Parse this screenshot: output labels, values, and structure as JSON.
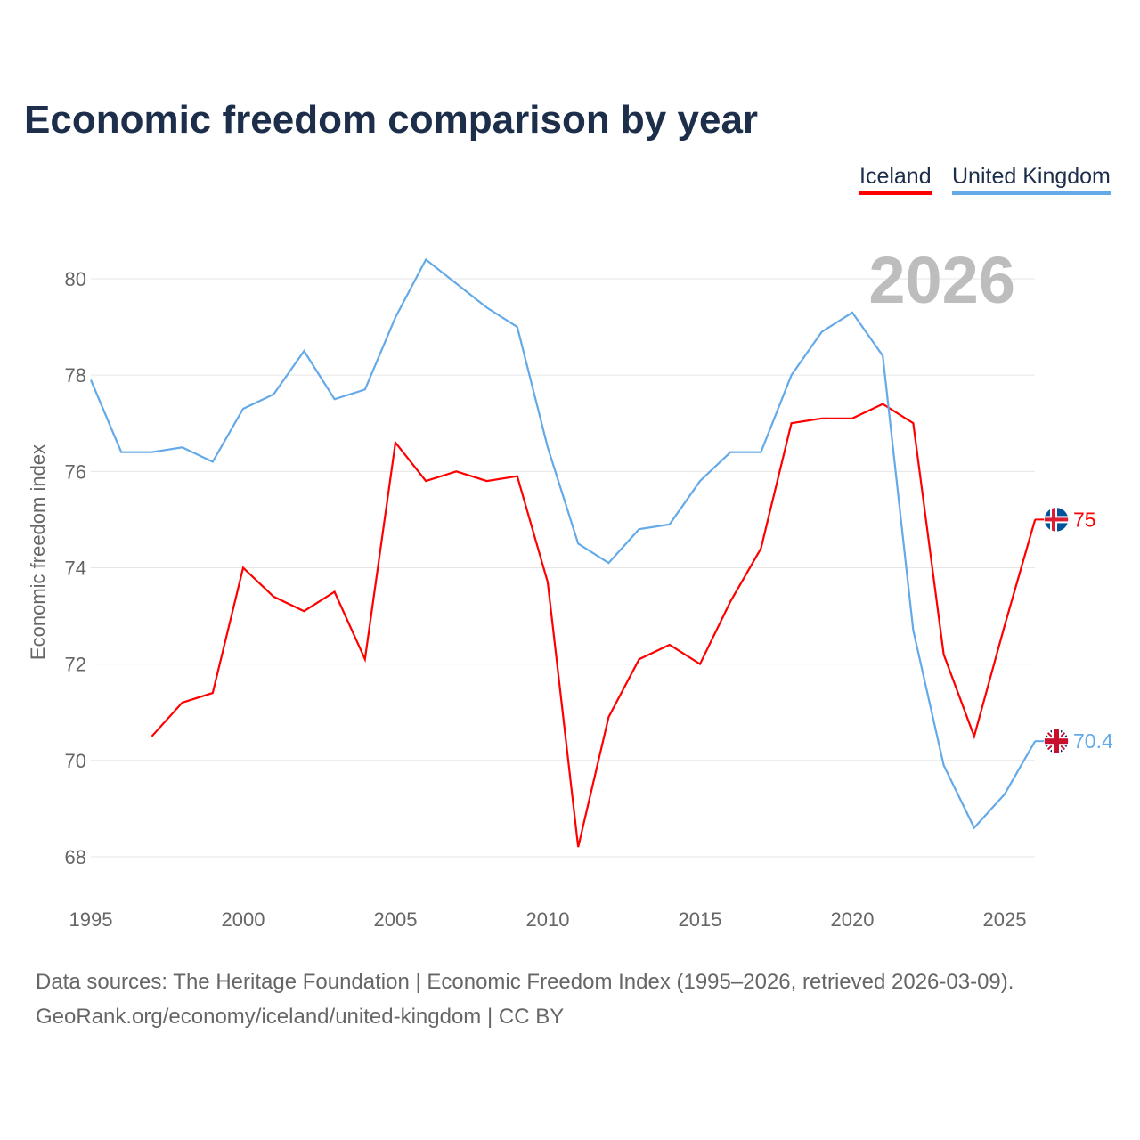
{
  "title": "Economic freedom comparison by year",
  "footer": {
    "line1": "Data sources: The Heritage Foundation | Economic Freedom Index (1995–2026, retrieved 2026-03-09).",
    "line2": "GeoRank.org/economy/iceland/united-kingdom | CC BY"
  },
  "chart_data": {
    "type": "line",
    "title": "Economic freedom comparison by year",
    "xlabel": "",
    "ylabel": "Economic freedom index",
    "year_watermark": "2026",
    "xlim": [
      1995,
      2026
    ],
    "ylim": [
      67,
      81
    ],
    "xticks": [
      "1995",
      "2000",
      "2005",
      "2010",
      "2015",
      "2020",
      "2025"
    ],
    "yticks": [
      "68",
      "70",
      "72",
      "74",
      "76",
      "78",
      "80"
    ],
    "grid": true,
    "legend_position": "top-right",
    "x": [
      1995,
      1996,
      1997,
      1998,
      1999,
      2000,
      2001,
      2002,
      2003,
      2004,
      2005,
      2006,
      2007,
      2008,
      2009,
      2010,
      2011,
      2012,
      2013,
      2014,
      2015,
      2016,
      2017,
      2018,
      2019,
      2020,
      2021,
      2022,
      2023,
      2024,
      2025,
      2026
    ],
    "series": [
      {
        "name": "Iceland",
        "color": "#ff0000",
        "end_label": "75",
        "flag": "iceland-flag",
        "values": [
          null,
          null,
          70.5,
          71.2,
          71.4,
          74.0,
          73.4,
          73.1,
          73.5,
          72.1,
          76.6,
          75.8,
          76.0,
          75.8,
          75.9,
          73.7,
          68.2,
          70.9,
          72.1,
          72.4,
          72.0,
          73.3,
          74.4,
          77.0,
          77.1,
          77.1,
          77.4,
          77.0,
          72.2,
          70.5,
          72.8,
          75.0
        ]
      },
      {
        "name": "United Kingdom",
        "color": "#64a9e8",
        "end_label": "70.4",
        "flag": "uk-flag",
        "values": [
          77.9,
          76.4,
          76.4,
          76.5,
          76.2,
          77.3,
          77.6,
          78.5,
          77.5,
          77.7,
          79.2,
          80.4,
          79.9,
          79.4,
          79.0,
          76.5,
          74.5,
          74.1,
          74.8,
          74.9,
          75.8,
          76.4,
          76.4,
          78.0,
          78.9,
          79.3,
          78.4,
          72.7,
          69.9,
          68.6,
          69.3,
          70.4
        ]
      }
    ]
  }
}
